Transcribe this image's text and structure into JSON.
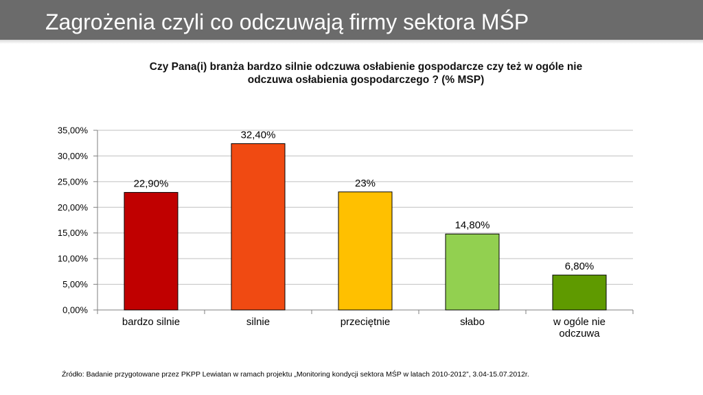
{
  "header": {
    "title": "Zagrożenia czyli co odczuwają firmy sektora MŚP"
  },
  "colors": {
    "header_bg": "#6b6b6b",
    "grid": "#bfbfbf",
    "axis": "#7f7f7f"
  },
  "chart_data": {
    "type": "bar",
    "title_lines": [
      "Czy Pana(i) branża bardzo silnie odczuwa osłabienie gospodarcze czy też w ogóle nie",
      "odczuwa osłabienia gospodarczego ? (% MSP)"
    ],
    "categories": [
      [
        "bardzo silnie"
      ],
      [
        "silnie"
      ],
      [
        "przeciętnie"
      ],
      [
        "słabo"
      ],
      [
        "w ogóle nie",
        "odczuwa"
      ]
    ],
    "values": [
      22.9,
      32.4,
      23,
      14.8,
      6.8
    ],
    "data_labels": [
      "22,90%",
      "32,40%",
      "23%",
      "14,80%",
      "6,80%"
    ],
    "bar_colors": [
      "#c00000",
      "#f04a12",
      "#ffc000",
      "#92d050",
      "#5f9a00"
    ],
    "ylim": [
      0,
      35
    ],
    "y_ticks": [
      0,
      5,
      10,
      15,
      20,
      25,
      30,
      35
    ],
    "y_tick_labels": [
      "0,00%",
      "5,00%",
      "10,00%",
      "15,00%",
      "20,00%",
      "25,00%",
      "30,00%",
      "35,00%"
    ],
    "grid": true,
    "legend": "none"
  },
  "source": "Źródło: Badanie przygotowane przez PKPP Lewiatan w ramach projektu „Monitoring kondycji sektora MŚP w latach 2010-2012”, 3.04-15.07.2012r."
}
